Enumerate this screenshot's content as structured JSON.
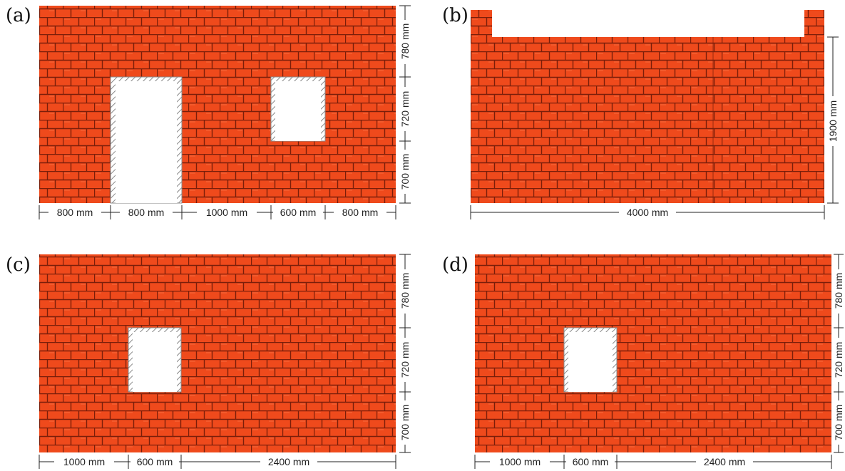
{
  "colors": {
    "brick": "#ef4a1c",
    "mortar": "#7a1e0a",
    "opening": "#ffffff",
    "frame_hatch": "#888888",
    "dimension": "#222222"
  },
  "panels": [
    {
      "label": "(a)",
      "bottom_dims": [
        "800 mm",
        "800 mm",
        "1000 mm",
        "600 mm",
        "800 mm"
      ],
      "side_dims": [
        "780 mm",
        "720 mm",
        "700 mm"
      ]
    },
    {
      "label": "(b)",
      "bottom_dims": [
        "4000 mm"
      ],
      "side_dims": [
        "1900 mm"
      ]
    },
    {
      "label": "(c)",
      "bottom_dims": [
        "1000 mm",
        "600 mm",
        "2400 mm"
      ],
      "side_dims": [
        "780 mm",
        "720 mm",
        "700 mm"
      ]
    },
    {
      "label": "(d)",
      "bottom_dims": [
        "1000 mm",
        "600 mm",
        "2400 mm"
      ],
      "side_dims": [
        "780 mm",
        "720 mm",
        "700 mm"
      ]
    }
  ]
}
